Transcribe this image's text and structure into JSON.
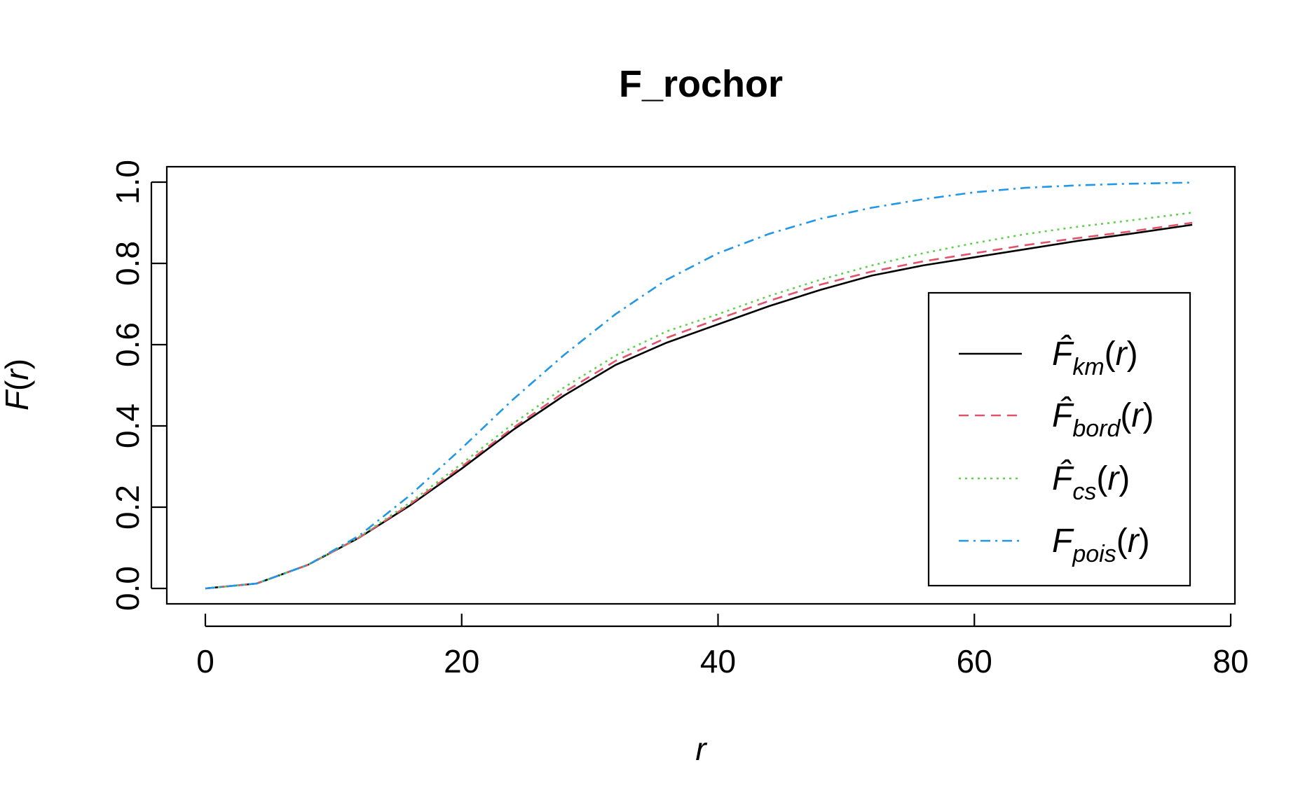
{
  "chart_data": {
    "type": "line",
    "title": "F_rochor",
    "xlabel": "r",
    "ylabel_main": "F",
    "ylabel_arg": "r",
    "xlim": [
      0,
      80
    ],
    "ylim": [
      0,
      1
    ],
    "xticks": [
      0,
      20,
      40,
      60,
      80
    ],
    "xtick_labels": [
      "0",
      "20",
      "40",
      "60",
      "80"
    ],
    "yticks": [
      0,
      0.2,
      0.4,
      0.6,
      0.8,
      1.0
    ],
    "ytick_labels": [
      "0.0",
      "0.2",
      "0.4",
      "0.6",
      "0.8",
      "1.0"
    ],
    "grid": false,
    "legend_position": "bottom-right",
    "x": [
      0,
      4,
      8,
      12,
      16,
      20,
      24,
      28,
      32,
      36,
      40,
      44,
      48,
      52,
      56,
      60,
      64,
      68,
      72,
      77
    ],
    "series": [
      {
        "name": "F̂km(r)",
        "label_base": "F̂",
        "label_sub": "km",
        "label_arg": "r",
        "color": "#000000",
        "dash": "",
        "values": [
          0.0,
          0.012,
          0.058,
          0.125,
          0.205,
          0.295,
          0.39,
          0.475,
          0.55,
          0.605,
          0.65,
          0.695,
          0.735,
          0.77,
          0.795,
          0.815,
          0.835,
          0.855,
          0.872,
          0.895
        ]
      },
      {
        "name": "F̂bord(r)",
        "label_base": "F̂",
        "label_sub": "bord",
        "label_arg": "r",
        "color": "#DF536B",
        "dash": "14,9",
        "values": [
          0.0,
          0.012,
          0.058,
          0.125,
          0.208,
          0.3,
          0.395,
          0.483,
          0.56,
          0.617,
          0.663,
          0.708,
          0.748,
          0.78,
          0.805,
          0.825,
          0.845,
          0.862,
          0.878,
          0.9
        ]
      },
      {
        "name": "F̂cs(r)",
        "label_base": "F̂",
        "label_sub": "cs",
        "label_arg": "r",
        "color": "#61D04F",
        "dash": "3,6",
        "values": [
          0.0,
          0.012,
          0.058,
          0.127,
          0.212,
          0.307,
          0.405,
          0.495,
          0.573,
          0.633,
          0.675,
          0.72,
          0.76,
          0.795,
          0.825,
          0.85,
          0.872,
          0.89,
          0.905,
          0.925
        ]
      },
      {
        "name": "Fpois(r)",
        "label_base": "F",
        "label_sub": "pois",
        "label_arg": "r",
        "color": "#2297E6",
        "dash": "14,7,3,7",
        "values": [
          0.0,
          0.012,
          0.058,
          0.13,
          0.23,
          0.345,
          0.465,
          0.575,
          0.675,
          0.76,
          0.825,
          0.873,
          0.91,
          0.937,
          0.958,
          0.975,
          0.986,
          0.992,
          0.996,
          0.999
        ]
      }
    ]
  }
}
